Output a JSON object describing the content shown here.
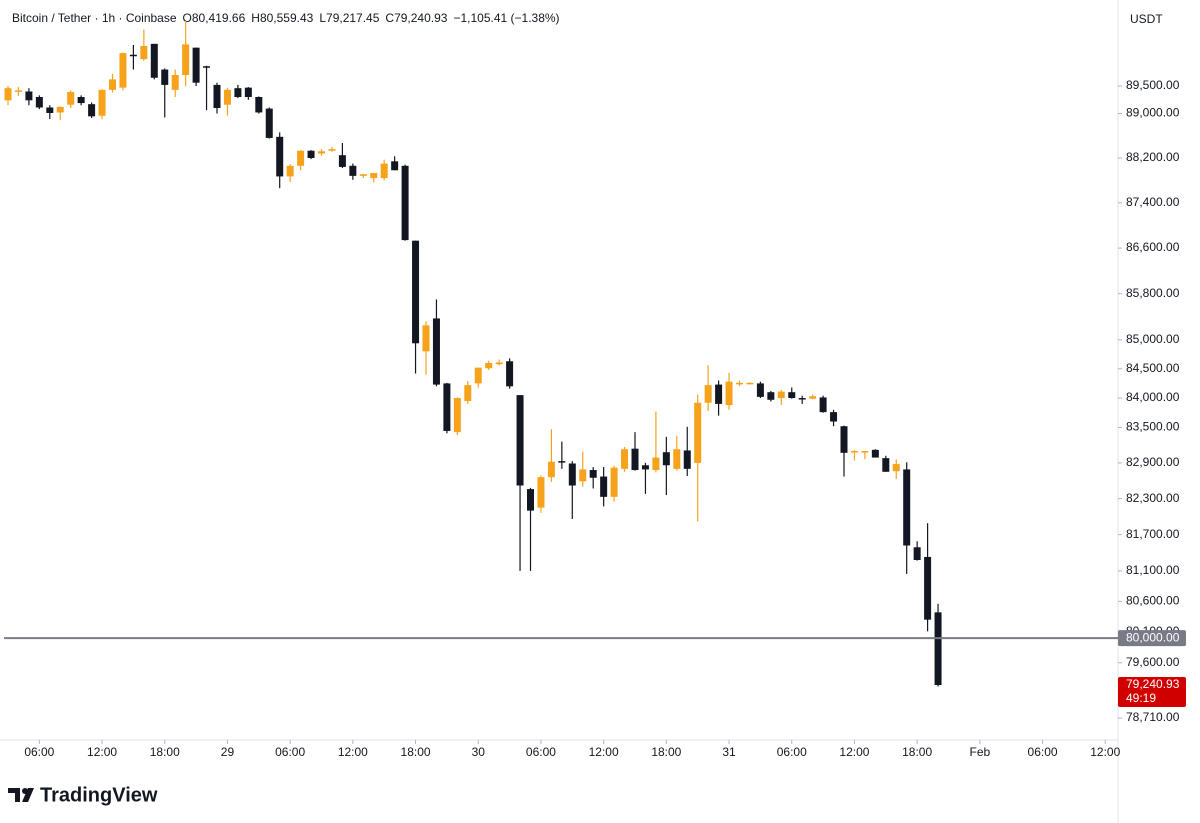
{
  "header": {
    "symbol": "Bitcoin / Tether · 1h · Coinbase",
    "ohlc": [
      {
        "key": "O",
        "value": "80,419.66"
      },
      {
        "key": "H",
        "value": "80,559.43"
      },
      {
        "key": "L",
        "value": "79,217.45"
      },
      {
        "key": "C",
        "value": "79,240.93"
      }
    ],
    "change": "−1,105.41 (−1.38%)"
  },
  "chart_data": {
    "type": "candlestick",
    "currency": "USDT",
    "categories": [
      null,
      null,
      null,
      "06:00",
      null,
      null,
      null,
      null,
      null,
      "12:00",
      null,
      null,
      null,
      null,
      null,
      "18:00",
      null,
      null,
      null,
      null,
      null,
      "29",
      null,
      null,
      null,
      null,
      null,
      "06:00",
      null,
      null,
      null,
      null,
      null,
      "12:00",
      null,
      null,
      null,
      null,
      null,
      "18:00",
      null,
      null,
      null,
      null,
      null,
      "30",
      null,
      null,
      null,
      null,
      null,
      "06:00",
      null,
      null,
      null,
      null,
      null,
      "12:00",
      null,
      null,
      null,
      null,
      null,
      "18:00",
      null,
      null,
      null,
      null,
      null,
      "31",
      null,
      null,
      null,
      null,
      null,
      "06:00",
      null,
      null,
      null,
      null,
      null,
      "12:00",
      null,
      null,
      null,
      null,
      null,
      "18:00",
      null,
      null,
      null,
      null,
      null,
      "Feb",
      null,
      null,
      null,
      null,
      null,
      "06:00",
      null,
      null,
      null,
      null,
      null,
      "12:00",
      null
    ],
    "open": [
      89240,
      89400,
      89400,
      89300,
      89110,
      89020,
      89160,
      89300,
      89170,
      88960,
      89430,
      89470,
      90070,
      89990,
      90270,
      89800,
      89430,
      89700,
      90200,
      89860,
      89520,
      89160,
      89460,
      89470,
      89300,
      89090,
      88580,
      87870,
      88060,
      88330,
      88280,
      88330,
      88250,
      88060,
      87880,
      87840,
      87840,
      88140,
      88060,
      86730,
      84800,
      85370,
      84250,
      83420,
      83950,
      84250,
      84510,
      84580,
      84630,
      84050,
      82460,
      82150,
      82660,
      82930,
      82890,
      82590,
      82780,
      82670,
      82330,
      82800,
      83140,
      82860,
      82780,
      83080,
      82800,
      83110,
      82900,
      83920,
      84230,
      83880,
      84240,
      84250,
      84250,
      84100,
      84000,
      84100,
      84000,
      83990,
      84010,
      83760,
      83520,
      83080,
      83090,
      83120,
      82980,
      82760,
      82790,
      81490,
      81330,
      80419.66,
      null,
      null,
      null,
      null,
      null,
      null,
      null,
      null,
      null,
      null,
      null,
      null,
      null,
      null,
      null,
      null,
      null
    ],
    "high": [
      89500,
      89480,
      89460,
      89330,
      89150,
      89130,
      89420,
      89330,
      89200,
      89440,
      89720,
      90110,
      90250,
      90530,
      90270,
      89820,
      89800,
      90690,
      90200,
      89870,
      89560,
      89470,
      89520,
      89480,
      89310,
      89110,
      88660,
      88090,
      88340,
      88340,
      88360,
      88400,
      88470,
      88100,
      87910,
      87930,
      88170,
      88230,
      88080,
      86730,
      85320,
      85700,
      84260,
      84010,
      84290,
      84520,
      84640,
      84660,
      84680,
      84050,
      82480,
      82690,
      83470,
      83260,
      82930,
      83090,
      82830,
      82830,
      82850,
      83170,
      83420,
      82900,
      83770,
      83340,
      83360,
      83510,
      84060,
      84560,
      84300,
      84430,
      84300,
      84270,
      84280,
      84120,
      84140,
      84180,
      84040,
      84060,
      84040,
      83800,
      83530,
      83120,
      83100,
      83130,
      83020,
      82960,
      82910,
      81590,
      81890,
      80559.43,
      null,
      null,
      null,
      null,
      null,
      null,
      null,
      null,
      null,
      null,
      null,
      null,
      null,
      null,
      null,
      null,
      null
    ],
    "low": [
      89150,
      89320,
      89150,
      89080,
      88900,
      88880,
      89100,
      89150,
      88920,
      88900,
      89380,
      89420,
      89800,
      89960,
      89620,
      88930,
      89300,
      89500,
      89500,
      89060,
      89000,
      88960,
      89280,
      89250,
      89000,
      88550,
      87660,
      87770,
      87980,
      88180,
      88240,
      88310,
      88020,
      87810,
      87840,
      87760,
      87800,
      87980,
      86730,
      84420,
      84400,
      84200,
      83400,
      83370,
      83900,
      84180,
      84480,
      84560,
      84160,
      81100,
      81100,
      82060,
      82580,
      82800,
      81960,
      82500,
      82470,
      82170,
      82250,
      82750,
      82770,
      82380,
      82740,
      82360,
      82770,
      82680,
      81920,
      83780,
      83700,
      83800,
      84200,
      84230,
      84000,
      83940,
      83880,
      83990,
      83900,
      83980,
      83750,
      83520,
      82670,
      82940,
      82960,
      82990,
      82750,
      82630,
      81050,
      81270,
      80110,
      79217.45,
      null,
      null,
      null,
      null,
      null,
      null,
      null,
      null,
      null,
      null,
      null,
      null,
      null,
      null,
      null,
      null,
      null
    ],
    "close": [
      89460,
      89420,
      89240,
      89110,
      89010,
      89120,
      89390,
      89190,
      88950,
      89430,
      89620,
      90100,
      90060,
      90230,
      89650,
      89520,
      89700,
      90260,
      89560,
      89840,
      89100,
      89430,
      89300,
      89300,
      89020,
      88560,
      87870,
      88060,
      88330,
      88200,
      88320,
      88360,
      88040,
      87880,
      87910,
      87930,
      88100,
      87980,
      86740,
      84940,
      85250,
      84230,
      83440,
      84000,
      84220,
      84520,
      84600,
      84610,
      84200,
      82520,
      82100,
      82660,
      82920,
      82920,
      82520,
      82790,
      82650,
      82330,
      82820,
      83130,
      82780,
      82790,
      82990,
      82860,
      83130,
      82800,
      83920,
      84220,
      83900,
      84280,
      84260,
      84260,
      84020,
      83970,
      84110,
      84000,
      83980,
      84030,
      83760,
      83600,
      83070,
      83100,
      83100,
      82990,
      82750,
      82880,
      81520,
      81280,
      80300,
      79240.93,
      null,
      null,
      null,
      null,
      null,
      null,
      null,
      null,
      null,
      null,
      null,
      null,
      null,
      null,
      null,
      null,
      null
    ],
    "up_color": "#f7a21b",
    "down_color": "#131722",
    "log_scale": true,
    "ylim": [
      78360,
      90930
    ],
    "yticks": [
      {
        "value": 78710,
        "label": "78,710.00"
      },
      {
        "value": 79600,
        "label": "79,600.00"
      },
      {
        "value": 80100,
        "label": "80,100.00"
      },
      {
        "value": 80600,
        "label": "80,600.00"
      },
      {
        "value": 81100,
        "label": "81,100.00"
      },
      {
        "value": 81700,
        "label": "81,700.00"
      },
      {
        "value": 82300,
        "label": "82,300.00"
      },
      {
        "value": 82900,
        "label": "82,900.00"
      },
      {
        "value": 83500,
        "label": "83,500.00"
      },
      {
        "value": 84000,
        "label": "84,000.00"
      },
      {
        "value": 84500,
        "label": "84,500.00"
      },
      {
        "value": 85000,
        "label": "85,000.00"
      },
      {
        "value": 85800,
        "label": "85,800.00"
      },
      {
        "value": 86600,
        "label": "86,600.00"
      },
      {
        "value": 87400,
        "label": "87,400.00"
      },
      {
        "value": 88200,
        "label": "88,200.00"
      },
      {
        "value": 89000,
        "label": "89,000.00"
      },
      {
        "value": 89500,
        "label": "89,500.00"
      }
    ],
    "price_line": {
      "value": 80000,
      "label": "80,000.00",
      "color": "#787b86"
    },
    "last_price": {
      "value": 79240.93,
      "label": "79,240.93",
      "countdown": "49:19",
      "color": "#d10000"
    }
  },
  "branding": "TradingView"
}
